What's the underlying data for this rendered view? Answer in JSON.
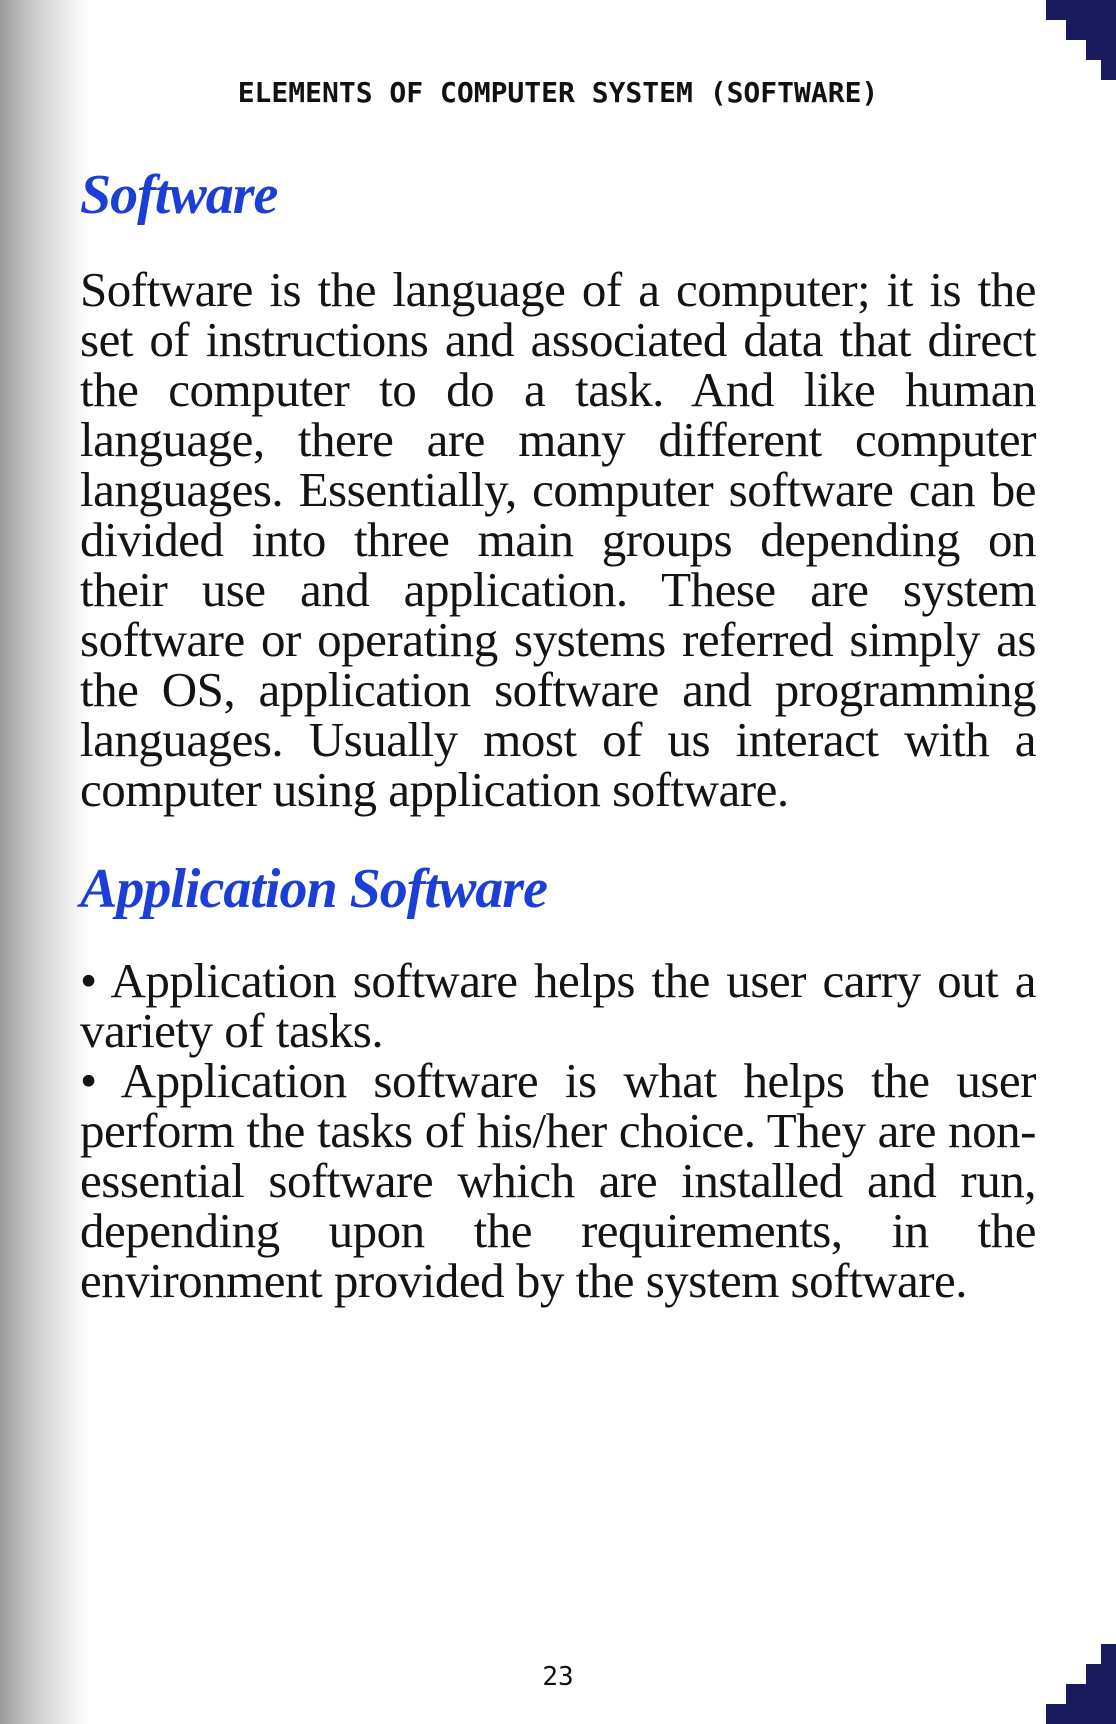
{
  "running_header": "ELEMENTS OF COMPUTER SYSTEM (SOFTWARE)",
  "accent_color": "#1b3fd6",
  "corner_color": "#1a1a5e",
  "sections": [
    {
      "heading": "Software",
      "paragraph": "Software is the language of a computer; it is the set of instructions and associated data that direct the computer to do a task. And like human language, there are many different computer languages. Essentially, computer software can be divided into three main groups depending on their use and application. These are system software or operating systems referred simply as the OS, application software and programming languages. Usually most of us interact with a computer using application software."
    },
    {
      "heading": "Application Software",
      "bullets": [
        "• Application software helps the user carry out a variety of tasks.",
        "• Application software is what helps the user perform the tasks of his/her choice. They are non-essential software which are installed and run, depending upon the requirements, in the environment provided by the system software."
      ]
    }
  ],
  "page_number": "23"
}
